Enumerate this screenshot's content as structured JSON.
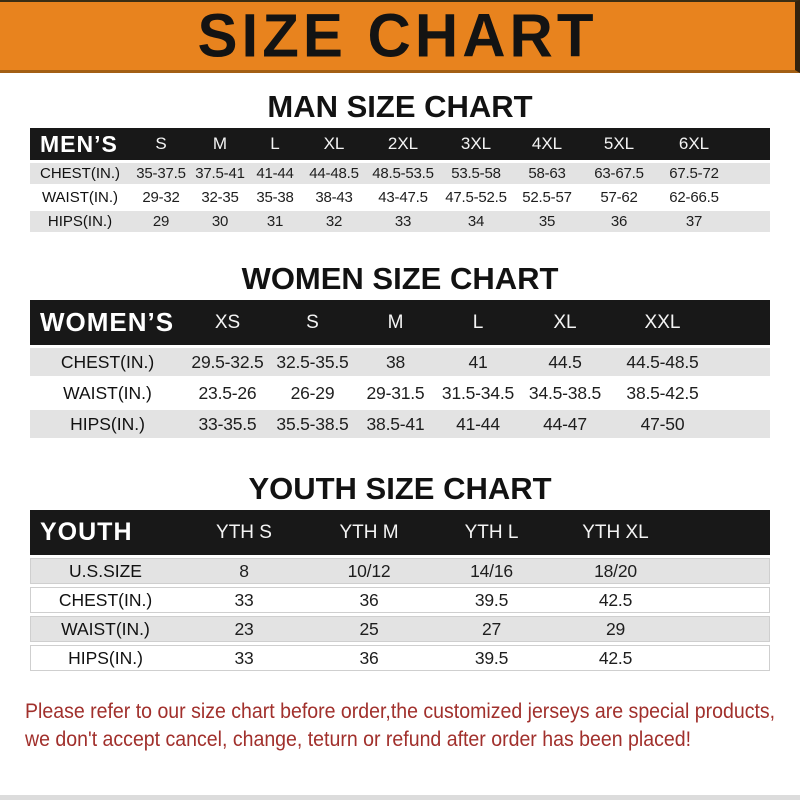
{
  "banner": {
    "title": "SIZE CHART",
    "bg_color": "#E8831E",
    "text_color": "#131313"
  },
  "colors": {
    "table_header_bg": "#181818",
    "table_header_text": "#FFFFFF",
    "row_stripe_gray": "#E3E3E3",
    "disclaimer_red": "#A1302C"
  },
  "sections": [
    {
      "title": "MAN SIZE CHART",
      "table": {
        "header": [
          "MEN’S",
          "S",
          "M",
          "L",
          "XL",
          "2XL",
          "3XL",
          "4XL",
          "5XL",
          "6XL"
        ],
        "rows": [
          {
            "label": "CHEST(IN.)",
            "values": [
              "35-37.5",
              "37.5-41",
              "41-44",
              "44-48.5",
              "48.5-53.5",
              "53.5-58",
              "58-63",
              "63-67.5",
              "67.5-72"
            ]
          },
          {
            "label": "WAIST(IN.)",
            "values": [
              "29-32",
              "32-35",
              "35-38",
              "38-43",
              "43-47.5",
              "47.5-52.5",
              "52.5-57",
              "57-62",
              "62-66.5"
            ]
          },
          {
            "label": "HIPS(IN.)",
            "values": [
              "29",
              "30",
              "31",
              "32",
              "33",
              "34",
              "35",
              "36",
              "37"
            ]
          }
        ]
      }
    },
    {
      "title": "WOMEN SIZE CHART",
      "table": {
        "header": [
          "WOMEN’S",
          "XS",
          "S",
          "M",
          "L",
          "XL",
          "XXL"
        ],
        "rows": [
          {
            "label": "CHEST(IN.)",
            "values": [
              "29.5-32.5",
              "32.5-35.5",
              "38",
              "41",
              "44.5",
              "44.5-48.5"
            ]
          },
          {
            "label": "WAIST(IN.)",
            "values": [
              "23.5-26",
              "26-29",
              "29-31.5",
              "31.5-34.5",
              "34.5-38.5",
              "38.5-42.5"
            ]
          },
          {
            "label": "HIPS(IN.)",
            "values": [
              "33-35.5",
              "35.5-38.5",
              "38.5-41",
              "41-44",
              "44-47",
              "47-50"
            ]
          }
        ]
      }
    },
    {
      "title": "YOUTH SIZE CHART",
      "table": {
        "header": [
          "YOUTH",
          "YTH S",
          "YTH M",
          "YTH L",
          "YTH XL"
        ],
        "rows": [
          {
            "label": "U.S.SIZE",
            "values": [
              "8",
              "10/12",
              "14/16",
              "18/20"
            ]
          },
          {
            "label": "CHEST(IN.)",
            "values": [
              "33",
              "36",
              "39.5",
              "42.5"
            ]
          },
          {
            "label": "WAIST(IN.)",
            "values": [
              "23",
              "25",
              "27",
              "29"
            ]
          },
          {
            "label": "HIPS(IN.)",
            "values": [
              "33",
              "36",
              "39.5",
              "42.5"
            ]
          }
        ]
      }
    }
  ],
  "footer": {
    "lines": [
      "Please refer to our size chart before order,the customized jerseys are special products,",
      "we don't accept cancel, change, teturn or refund after order has been placed!"
    ]
  }
}
